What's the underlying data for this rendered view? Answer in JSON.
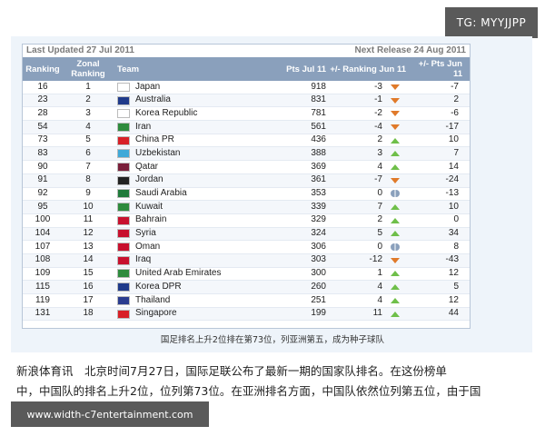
{
  "watermark_top": "TG: MYYJJPP",
  "watermark_bottom": "www.width-c7entertainment.com",
  "table": {
    "last_updated": "Last Updated 27 Jul 2011",
    "next_release": "Next Release 24 Aug 2011",
    "headers": {
      "ranking": "Ranking",
      "zonal": "Zonal Ranking",
      "team": "Team",
      "pts": "Pts Jul 11",
      "change": "+/- Ranking Jun 11",
      "pts_change": "+/- Pts Jun 11"
    },
    "rows": [
      {
        "rank": "16",
        "zonal": "1",
        "team": "Japan",
        "pts": "918",
        "change": "-3",
        "trend": "down",
        "ptschg": "-7",
        "flag": "#ffffff"
      },
      {
        "rank": "23",
        "zonal": "2",
        "team": "Australia",
        "pts": "831",
        "change": "-1",
        "trend": "down",
        "ptschg": "2",
        "flag": "#1f3a8a"
      },
      {
        "rank": "28",
        "zonal": "3",
        "team": "Korea Republic",
        "pts": "781",
        "change": "-2",
        "trend": "down",
        "ptschg": "-6",
        "flag": "#ffffff"
      },
      {
        "rank": "54",
        "zonal": "4",
        "team": "Iran",
        "pts": "561",
        "change": "-4",
        "trend": "down",
        "ptschg": "-17",
        "flag": "#2e8b3d"
      },
      {
        "rank": "73",
        "zonal": "5",
        "team": "China PR",
        "pts": "436",
        "change": "2",
        "trend": "up",
        "ptschg": "10",
        "flag": "#d81f26"
      },
      {
        "rank": "83",
        "zonal": "6",
        "team": "Uzbekistan",
        "pts": "388",
        "change": "3",
        "trend": "up",
        "ptschg": "7",
        "flag": "#3fa9d8"
      },
      {
        "rank": "90",
        "zonal": "7",
        "team": "Qatar",
        "pts": "369",
        "change": "4",
        "trend": "up",
        "ptschg": "14",
        "flag": "#7a1f3a"
      },
      {
        "rank": "91",
        "zonal": "8",
        "team": "Jordan",
        "pts": "361",
        "change": "-7",
        "trend": "down",
        "ptschg": "-24",
        "flag": "#222222"
      },
      {
        "rank": "92",
        "zonal": "9",
        "team": "Saudi Arabia",
        "pts": "353",
        "change": "0",
        "trend": "same",
        "ptschg": "-13",
        "flag": "#1f7a3a"
      },
      {
        "rank": "95",
        "zonal": "10",
        "team": "Kuwait",
        "pts": "339",
        "change": "7",
        "trend": "up",
        "ptschg": "10",
        "flag": "#2e8b3d"
      },
      {
        "rank": "100",
        "zonal": "11",
        "team": "Bahrain",
        "pts": "329",
        "change": "2",
        "trend": "up",
        "ptschg": "0",
        "flag": "#c8102e"
      },
      {
        "rank": "104",
        "zonal": "12",
        "team": "Syria",
        "pts": "324",
        "change": "5",
        "trend": "up",
        "ptschg": "34",
        "flag": "#c8102e"
      },
      {
        "rank": "107",
        "zonal": "13",
        "team": "Oman",
        "pts": "306",
        "change": "0",
        "trend": "same",
        "ptschg": "8",
        "flag": "#c8102e"
      },
      {
        "rank": "108",
        "zonal": "14",
        "team": "Iraq",
        "pts": "303",
        "change": "-12",
        "trend": "down",
        "ptschg": "-43",
        "flag": "#c8102e"
      },
      {
        "rank": "109",
        "zonal": "15",
        "team": "United Arab Emirates",
        "pts": "300",
        "change": "1",
        "trend": "up",
        "ptschg": "12",
        "flag": "#2e8b3d"
      },
      {
        "rank": "115",
        "zonal": "16",
        "team": "Korea DPR",
        "pts": "260",
        "change": "4",
        "trend": "up",
        "ptschg": "5",
        "flag": "#1f3a8a"
      },
      {
        "rank": "119",
        "zonal": "17",
        "team": "Thailand",
        "pts": "251",
        "change": "4",
        "trend": "up",
        "ptschg": "12",
        "flag": "#2a3c8f"
      },
      {
        "rank": "131",
        "zonal": "18",
        "team": "Singapore",
        "pts": "199",
        "change": "11",
        "trend": "up",
        "ptschg": "44",
        "flag": "#d81f26"
      }
    ]
  },
  "caption": "国足排名上升2位排在第73位，列亚洲第五，成为种子球队",
  "article": {
    "line1": "新浪体育讯　北京时间7月27日，国际足联公布了最新一期的国家队排名。在这份榜单",
    "line2": "中，中国队的排名上升2位，位列第73位。在亚洲排名方面，中国队依然位列第五位，由于国"
  }
}
